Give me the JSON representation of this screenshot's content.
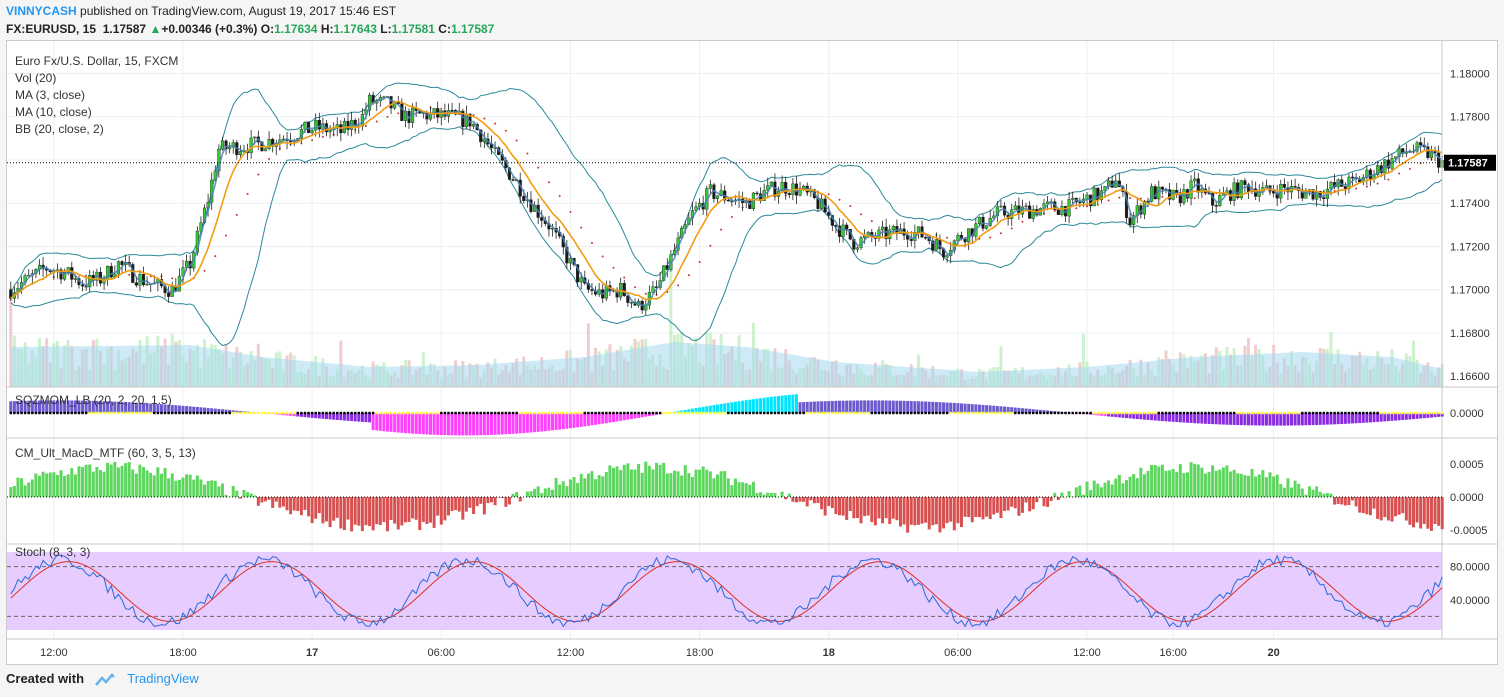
{
  "header": {
    "author": "VINNYCASH",
    "published_text": "published on TradingView.com, August 19, 2017 15:46 EST",
    "symbol": "FX:EURUSD, 15",
    "last": "1.17587",
    "change": "+0.00346 (+0.3%)",
    "o_label": "O:",
    "o": "1.17634",
    "h_label": "H:",
    "h": "1.17643",
    "l_label": "L:",
    "l": "1.17581",
    "c_label": "C:",
    "c": "1.17587"
  },
  "legend": [
    "Euro Fx/U.S. Dollar, 15, FXCM",
    "Vol (20)",
    "MA (3, close)",
    "MA (10, close)",
    "BB (20, close, 2)"
  ],
  "footer": {
    "created_with": "Created with",
    "brand": "TradingView"
  },
  "colors": {
    "up": "#33cc33",
    "down": "#1a1a1a",
    "ma3": "#4682b4",
    "ma10": "#f39c12",
    "bb": "#2a8a9a",
    "vol_avg": "#a8d8f0",
    "stoch_k": "#2a6ad8",
    "stoch_d": "#e03020",
    "stoch_bg": "#e6ccff",
    "macd_up": "#5cd65c",
    "macd_down": "#d85050"
  },
  "chart_data": [
    {
      "type": "candlestick",
      "title": "Euro Fx/U.S. Dollar, 15, FXCM",
      "ylim": [
        1.1655,
        1.1815
      ],
      "y_ticks": [
        "1.18000",
        "1.17800",
        "1.17600",
        "1.17400",
        "1.17200",
        "1.17000",
        "1.16800",
        "1.16600"
      ],
      "last_price_label": "1.17587",
      "x_tick_labels": [
        "12:00",
        "18:00",
        "17",
        "06:00",
        "12:00",
        "18:00",
        "18",
        "06:00",
        "12:00",
        "16:00",
        "20"
      ],
      "close_profile": [
        [
          0,
          1.17
        ],
        [
          5,
          1.1705
        ],
        [
          10,
          1.171
        ],
        [
          15,
          1.1708
        ],
        [
          20,
          1.1703
        ],
        [
          25,
          1.1705
        ],
        [
          30,
          1.1712
        ],
        [
          35,
          1.1706
        ],
        [
          40,
          1.1702
        ],
        [
          45,
          1.17
        ],
        [
          50,
          1.1712
        ],
        [
          55,
          1.1742
        ],
        [
          58,
          1.1765
        ],
        [
          62,
          1.1766
        ],
        [
          68,
          1.1767
        ],
        [
          75,
          1.177
        ],
        [
          85,
          1.1775
        ],
        [
          92,
          1.1773
        ],
        [
          98,
          1.178
        ],
        [
          100,
          1.1787
        ],
        [
          105,
          1.1786
        ],
        [
          110,
          1.178
        ],
        [
          115,
          1.1781
        ],
        [
          122,
          1.178
        ],
        [
          128,
          1.1778
        ],
        [
          132,
          1.177
        ],
        [
          135,
          1.1762
        ],
        [
          140,
          1.1752
        ],
        [
          145,
          1.174
        ],
        [
          150,
          1.173
        ],
        [
          155,
          1.1715
        ],
        [
          160,
          1.17
        ],
        [
          165,
          1.1698
        ],
        [
          170,
          1.17
        ],
        [
          175,
          1.1692
        ],
        [
          180,
          1.17
        ],
        [
          185,
          1.1718
        ],
        [
          190,
          1.1735
        ],
        [
          195,
          1.1745
        ],
        [
          205,
          1.174
        ],
        [
          210,
          1.1745
        ],
        [
          215,
          1.1748
        ],
        [
          220,
          1.1746
        ],
        [
          225,
          1.174
        ],
        [
          230,
          1.173
        ],
        [
          235,
          1.1722
        ],
        [
          240,
          1.1724
        ],
        [
          245,
          1.1726
        ],
        [
          250,
          1.1727
        ],
        [
          255,
          1.1725
        ],
        [
          260,
          1.1718
        ],
        [
          265,
          1.1725
        ],
        [
          270,
          1.173
        ],
        [
          275,
          1.1735
        ],
        [
          280,
          1.1736
        ],
        [
          285,
          1.1737
        ],
        [
          290,
          1.1738
        ],
        [
          295,
          1.1738
        ],
        [
          300,
          1.1742
        ],
        [
          305,
          1.1745
        ],
        [
          308,
          1.1752
        ],
        [
          312,
          1.1732
        ],
        [
          318,
          1.1745
        ],
        [
          325,
          1.1742
        ],
        [
          330,
          1.1748
        ],
        [
          335,
          1.174
        ],
        [
          340,
          1.1745
        ],
        [
          345,
          1.1748
        ],
        [
          350,
          1.1745
        ],
        [
          355,
          1.1747
        ],
        [
          360,
          1.1745
        ],
        [
          365,
          1.1745
        ],
        [
          370,
          1.1748
        ],
        [
          375,
          1.175
        ],
        [
          380,
          1.1755
        ],
        [
          385,
          1.176
        ],
        [
          390,
          1.1765
        ],
        [
          395,
          1.1763
        ],
        [
          399,
          1.1759
        ]
      ],
      "volume_avg_profile": [
        [
          0,
          40
        ],
        [
          50,
          42
        ],
        [
          70,
          30
        ],
        [
          100,
          20
        ],
        [
          130,
          22
        ],
        [
          160,
          30
        ],
        [
          185,
          45
        ],
        [
          205,
          40
        ],
        [
          230,
          25
        ],
        [
          270,
          15
        ],
        [
          300,
          20
        ],
        [
          330,
          30
        ],
        [
          360,
          35
        ],
        [
          385,
          30
        ],
        [
          399,
          18
        ]
      ]
    },
    {
      "type": "bar",
      "title": "SQZMOM_LB (20, 2, 20, 1.5)",
      "y_ticks": [
        "0.0000"
      ]
    },
    {
      "type": "bar",
      "title": "CM_Ult_MacD_MTF (60, 3, 5, 13)",
      "y_ticks": [
        "0.0005",
        "0.0000",
        "-0.0005"
      ]
    },
    {
      "type": "line",
      "title": "Stoch (8, 3, 3)",
      "y_ticks": [
        "80.0000",
        "40.0000"
      ],
      "bands": [
        80,
        20
      ]
    }
  ]
}
